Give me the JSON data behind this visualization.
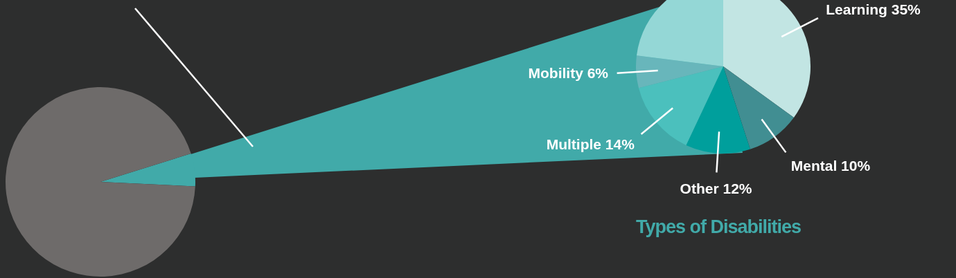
{
  "chart_data": [
    {
      "type": "pie",
      "categories": [
        null,
        null
      ],
      "values": [
        5.6,
        94.4
      ],
      "colors": [
        "#41aaa9",
        "#6e6b6a"
      ]
    },
    {
      "type": "pie",
      "title": "Types of Disabilities",
      "categories": [
        "Learning",
        "Mental",
        "Other",
        "Multiple",
        "Mobility",
        null
      ],
      "values": [
        35,
        10,
        12,
        14,
        6,
        23
      ],
      "colors": [
        "#c2e5e3",
        "#418e92",
        "#009f9c",
        "#4bc0bd",
        "#68b6bb",
        "#94d7d6"
      ],
      "value_labels": [
        "35%",
        "10%",
        "12%",
        "14%",
        "6%",
        null
      ]
    }
  ]
}
